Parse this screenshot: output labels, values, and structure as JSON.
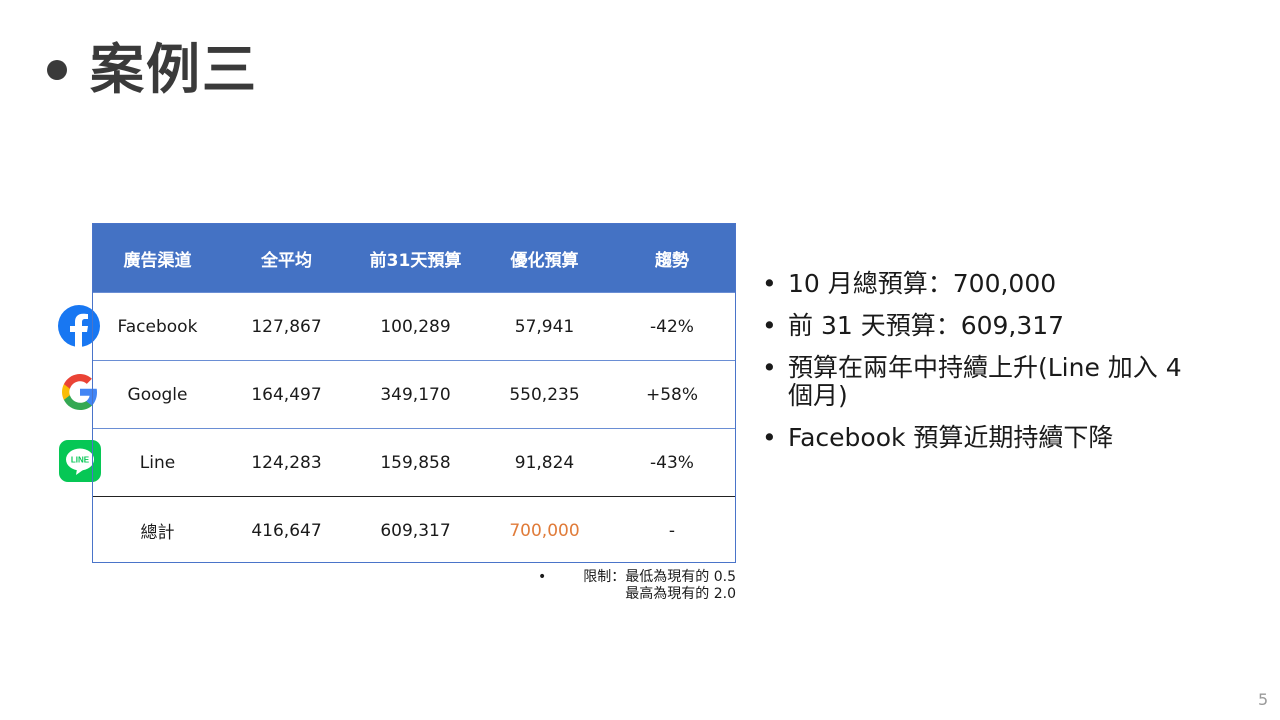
{
  "slide": {
    "title": "案例三",
    "page_number": "5"
  },
  "table": {
    "headers": [
      "廣告渠道",
      "全平均",
      "前31天預算",
      "優化預算",
      "趨勢"
    ],
    "rows": [
      {
        "channel": "Facebook",
        "avg": "127,867",
        "prev31": "100,289",
        "optimized": "57,941",
        "trend": "-42%"
      },
      {
        "channel": "Google",
        "avg": "164,497",
        "prev31": "349,170",
        "optimized": "550,235",
        "trend": "+58%"
      },
      {
        "channel": "Line",
        "avg": "124,283",
        "prev31": "159,858",
        "optimized": "91,824",
        "trend": "-43%"
      }
    ],
    "total": {
      "channel": "總計",
      "avg": "416,647",
      "prev31": "609,317",
      "optimized": "700,000",
      "trend": "-"
    },
    "highlight_color": "#e07b39",
    "header_color": "#4472c4"
  },
  "note": {
    "bullet": "•",
    "line1": "限制：最低為現有的 0.5",
    "line2": "最高為現有的 2.0"
  },
  "bullets": [
    "10 月總預算：700,000",
    "前 31 天預算：609,317",
    "預算在兩年中持續上升(Line 加入 4 個月)",
    "Facebook 預算近期持續下降"
  ],
  "logos": {
    "facebook": "facebook-logo-icon",
    "google": "google-logo-icon",
    "line": "line-logo-icon",
    "line_text": "LINE"
  }
}
